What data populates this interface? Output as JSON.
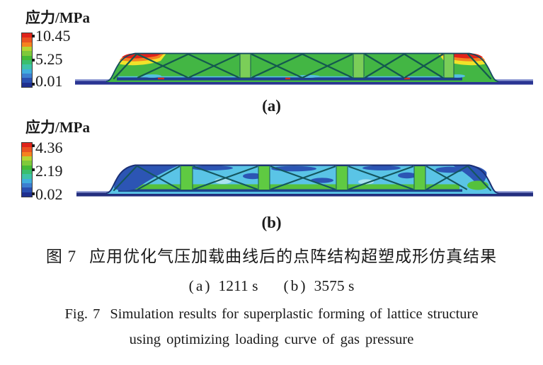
{
  "colorbar_colors": [
    "#e0241b",
    "#ea5222",
    "#f58220",
    "#b7d433",
    "#7fc93a",
    "#44ba38",
    "#3abf6e",
    "#3ec3a8",
    "#41aede",
    "#3c7fd0",
    "#2a4faf",
    "#1f2f8f"
  ],
  "panel_a": {
    "legend_title": "应力/MPa",
    "scale_max": "10.45",
    "scale_mid": "5.25",
    "scale_min": "0.01",
    "label": "(a)"
  },
  "panel_b": {
    "legend_title": "应力/MPa",
    "scale_max": "4.36",
    "scale_mid": "2.19",
    "scale_min": "0.02",
    "label": "(b)"
  },
  "caption": {
    "zh_prefix": "图 7",
    "zh_text": "应用优化气压加载曲线后的点阵结构超塑成形仿真结果",
    "sub_a_label": "(a)",
    "sub_a_value": "1211 s",
    "sub_b_label": "(b)",
    "sub_b_value": "3575 s",
    "en_prefix": "Fig. 7",
    "en_line1": "Simulation results for superplastic forming of lattice structure",
    "en_line2": "using optimizing loading curve of gas pressure"
  },
  "key_colors": {
    "contour_high_red": "#e2231a",
    "contour_green": "#43b644",
    "contour_cyan": "#5ac4e6",
    "contour_low_blue": "#2c55b4",
    "sheet_baseline_navy": "#2a3492"
  }
}
